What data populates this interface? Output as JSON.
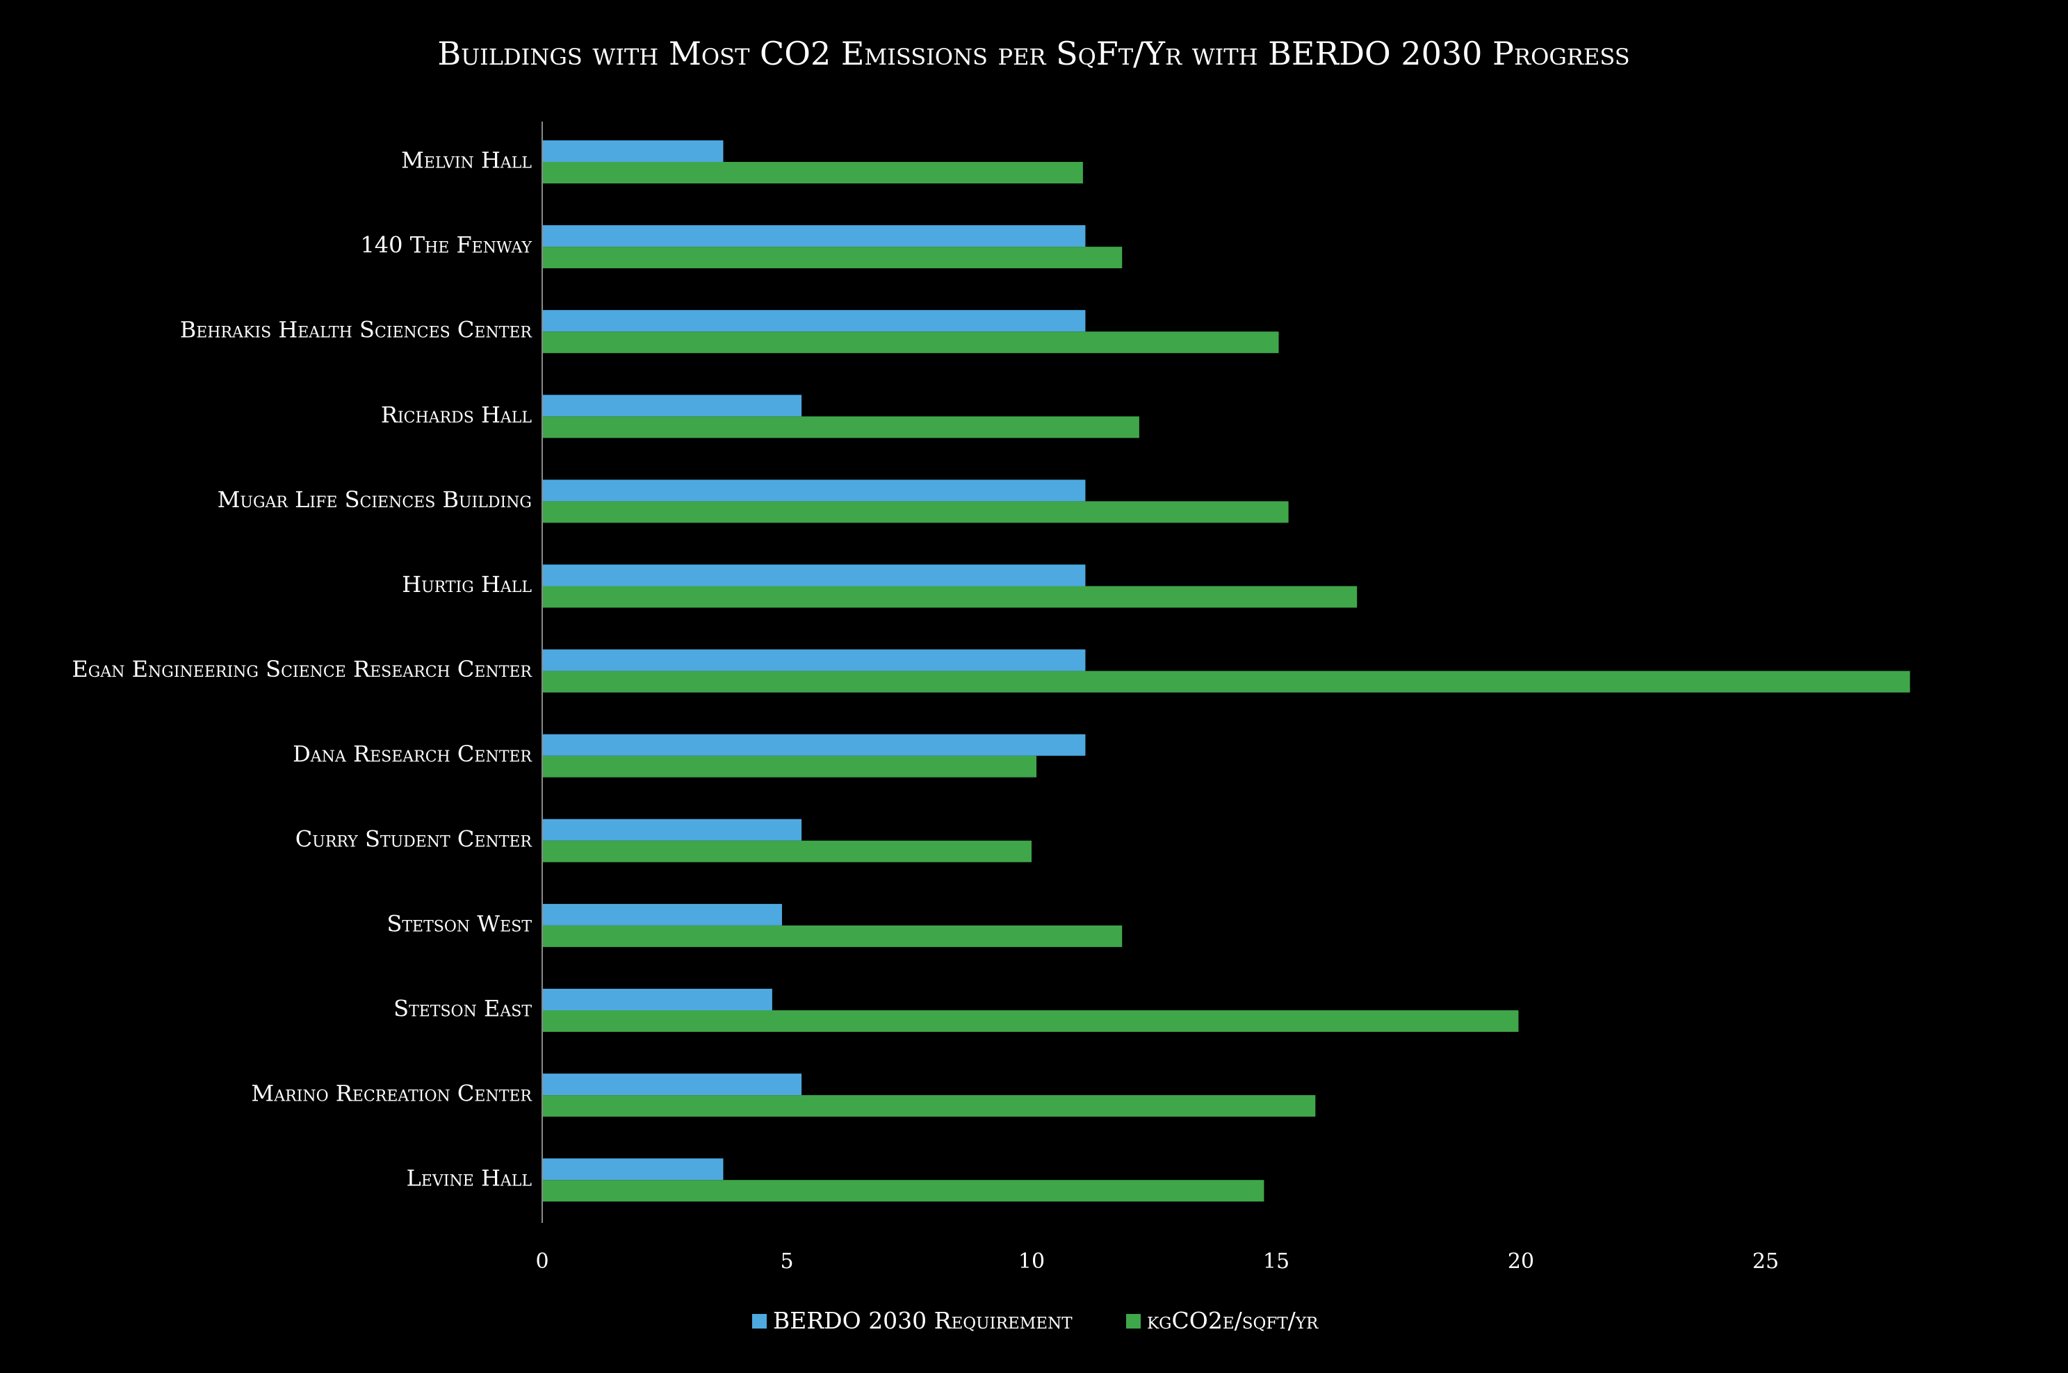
{
  "colors": {
    "background": "#000000",
    "text": "#ffffff",
    "axis": "#8a8a8a",
    "berdo": "#4ea9e0",
    "emissions": "#3fa64a"
  },
  "chart_data": {
    "type": "bar",
    "orientation": "horizontal",
    "title": "Buildings with Most CO2 Emissions per SqFt/Yr with BERDO 2030 Progress",
    "xlabel": "",
    "ylabel": "",
    "xlim": [
      0,
      30
    ],
    "xticks": [
      "0",
      "5",
      "10",
      "15",
      "20",
      "25"
    ],
    "grid": false,
    "legend_position": "bottom",
    "categories": [
      "Melvin Hall",
      "140 The Fenway",
      "Behrakis Health Sciences Center",
      "Richards Hall",
      "Mugar Life Sciences Building",
      "Hurtig Hall",
      "Egan Engineering Science Research Center",
      "Dana Research Center",
      "Curry Student Center",
      "Stetson West",
      "Stetson East",
      "Marino Recreation Center",
      "Levine Hall"
    ],
    "series": [
      {
        "name": "BERDO 2030 Requirement",
        "color": "#4ea9e0",
        "values": [
          3.7,
          11.1,
          11.1,
          5.3,
          11.1,
          11.1,
          11.1,
          11.1,
          5.3,
          4.9,
          4.7,
          5.3,
          3.7
        ]
      },
      {
        "name": "kgCO2e/sqft/yr",
        "color": "#3fa64a",
        "values": [
          11.05,
          11.85,
          15.05,
          12.2,
          15.25,
          16.65,
          27.95,
          10.1,
          10.0,
          11.85,
          19.95,
          15.8,
          14.75
        ]
      }
    ]
  }
}
